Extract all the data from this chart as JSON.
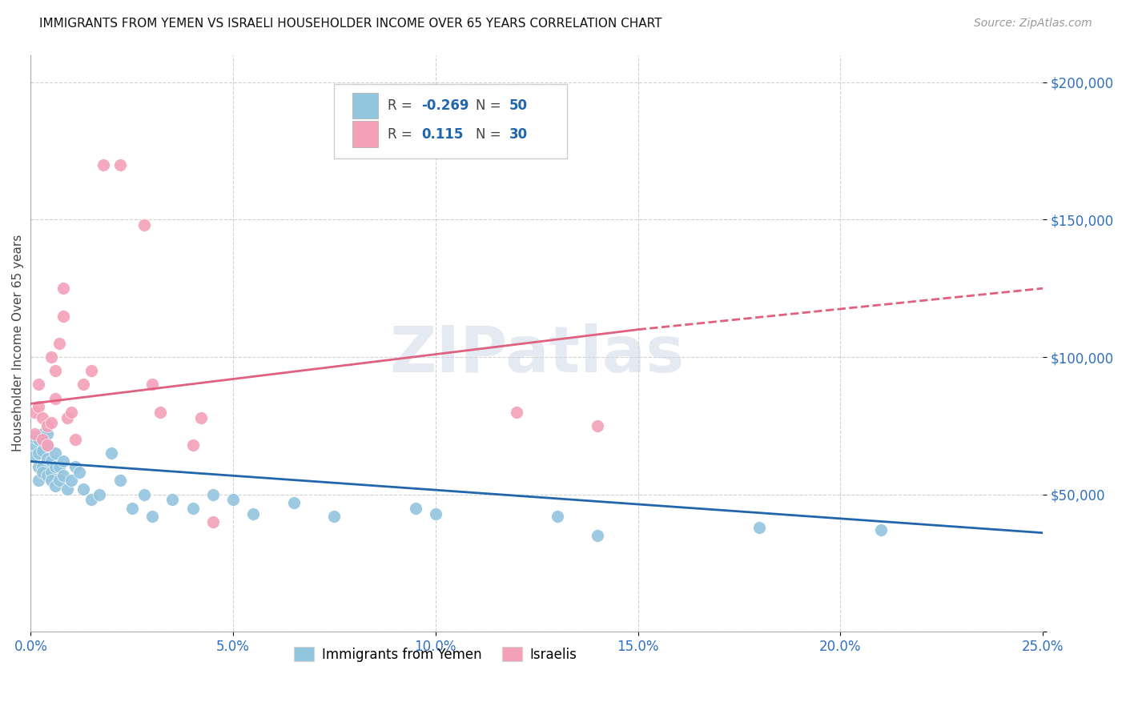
{
  "title": "IMMIGRANTS FROM YEMEN VS ISRAELI HOUSEHOLDER INCOME OVER 65 YEARS CORRELATION CHART",
  "source": "Source: ZipAtlas.com",
  "ylabel": "Householder Income Over 65 years",
  "xlim": [
    0,
    0.25
  ],
  "ylim": [
    0,
    210000
  ],
  "yticks": [
    0,
    50000,
    100000,
    150000,
    200000
  ],
  "ytick_labels": [
    "",
    "$50,000",
    "$100,000",
    "$150,000",
    "$200,000"
  ],
  "xtick_labels": [
    "0.0%",
    "5.0%",
    "10.0%",
    "15.0%",
    "20.0%",
    "25.0%"
  ],
  "xticks": [
    0,
    0.05,
    0.1,
    0.15,
    0.2,
    0.25
  ],
  "blue_R": -0.269,
  "blue_N": 50,
  "pink_R": 0.115,
  "pink_N": 30,
  "blue_color": "#92C5DE",
  "pink_color": "#F4A0B8",
  "blue_line_color": "#2166AC",
  "pink_line_color": "#E06080",
  "background_color": "#FFFFFF",
  "grid_color": "#CCCCCC",
  "blue_x": [
    0.001,
    0.001,
    0.001,
    0.002,
    0.002,
    0.002,
    0.002,
    0.003,
    0.003,
    0.003,
    0.003,
    0.004,
    0.004,
    0.004,
    0.004,
    0.005,
    0.005,
    0.005,
    0.006,
    0.006,
    0.006,
    0.007,
    0.007,
    0.008,
    0.008,
    0.009,
    0.01,
    0.011,
    0.012,
    0.013,
    0.015,
    0.017,
    0.02,
    0.022,
    0.025,
    0.028,
    0.03,
    0.035,
    0.04,
    0.045,
    0.05,
    0.055,
    0.065,
    0.075,
    0.095,
    0.1,
    0.13,
    0.14,
    0.18,
    0.21
  ],
  "blue_y": [
    68000,
    64000,
    71000,
    60000,
    65000,
    70000,
    55000,
    72000,
    66000,
    60000,
    58000,
    68000,
    63000,
    57000,
    72000,
    62000,
    58000,
    55000,
    65000,
    60000,
    53000,
    60000,
    55000,
    62000,
    57000,
    52000,
    55000,
    60000,
    58000,
    52000,
    48000,
    50000,
    65000,
    55000,
    45000,
    50000,
    42000,
    48000,
    45000,
    50000,
    48000,
    43000,
    47000,
    42000,
    45000,
    43000,
    42000,
    35000,
    38000,
    37000
  ],
  "pink_x": [
    0.001,
    0.001,
    0.002,
    0.002,
    0.003,
    0.003,
    0.004,
    0.004,
    0.005,
    0.005,
    0.006,
    0.006,
    0.007,
    0.008,
    0.008,
    0.009,
    0.01,
    0.011,
    0.013,
    0.015,
    0.018,
    0.022,
    0.028,
    0.03,
    0.032,
    0.04,
    0.042,
    0.045,
    0.12,
    0.14
  ],
  "pink_y": [
    80000,
    72000,
    90000,
    82000,
    78000,
    70000,
    75000,
    68000,
    76000,
    100000,
    95000,
    85000,
    105000,
    125000,
    115000,
    78000,
    80000,
    70000,
    90000,
    95000,
    170000,
    170000,
    148000,
    90000,
    80000,
    68000,
    78000,
    40000,
    80000,
    75000
  ]
}
